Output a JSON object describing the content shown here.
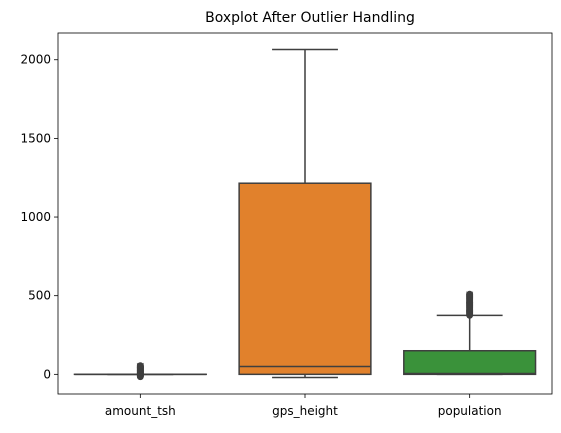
{
  "chart_data": {
    "type": "box",
    "title": "Boxplot After Outlier Handling",
    "xlabel": "",
    "ylabel": "",
    "ylim": [
      -125,
      2170
    ],
    "yticks": [
      0,
      500,
      1000,
      1500,
      2000
    ],
    "categories": [
      "amount_tsh",
      "gps_height",
      "population"
    ],
    "colors": {
      "amount_tsh": "#3a74b0",
      "gps_height": "#e1812c",
      "population": "#3a923a",
      "edge": "#3f3f3f"
    },
    "boxes": [
      {
        "name": "amount_tsh",
        "whisker_low": 0,
        "q1": 0,
        "median": 0,
        "q3": 0,
        "whisker_high": 0,
        "outlier_range": [
          -15,
          55
        ]
      },
      {
        "name": "gps_height",
        "whisker_low": -20,
        "q1": 0,
        "median": 50,
        "q3": 1215,
        "whisker_high": 2065,
        "outlier_range": null
      },
      {
        "name": "population",
        "whisker_low": 0,
        "q1": 0,
        "median": 5,
        "q3": 150,
        "whisker_high": 375,
        "outlier_range": [
          375,
          510
        ]
      }
    ]
  }
}
